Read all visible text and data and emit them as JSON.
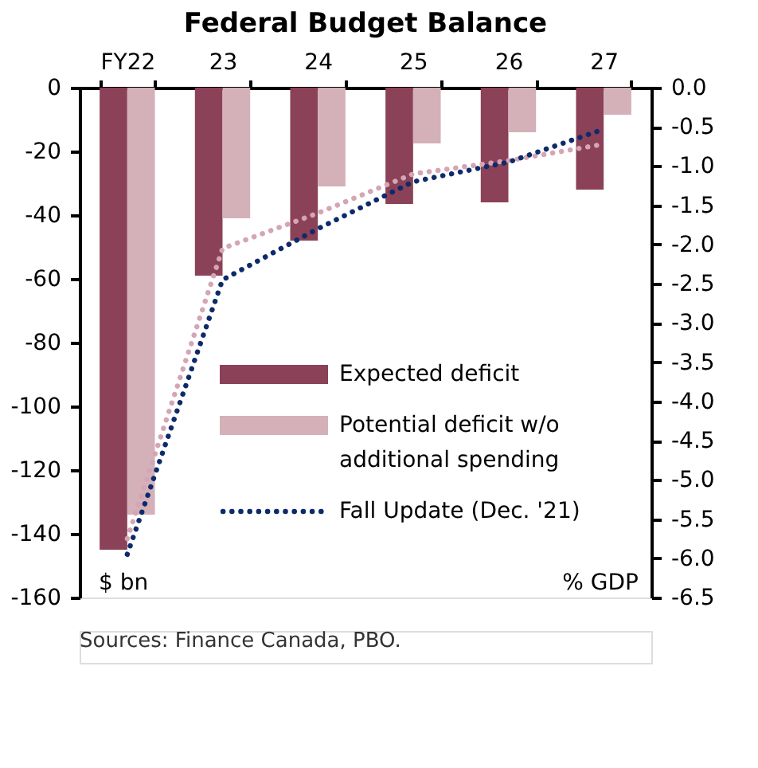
{
  "chart_data": {
    "type": "bar",
    "title": "Federal Budget Balance",
    "categories": [
      "FY22",
      "23",
      "24",
      "25",
      "26",
      "27"
    ],
    "ylabel": "$ bn",
    "y2label": "% GDP",
    "ylim": [
      -160,
      0
    ],
    "yticks": [
      -160,
      -140,
      -120,
      -100,
      -80,
      -60,
      -40,
      -20,
      0
    ],
    "y2lim": [
      -6.5,
      0
    ],
    "y2ticks": [
      {
        "value": -6.5,
        "label": "-6.5"
      },
      {
        "value": -6,
        "label": "-6.0"
      },
      {
        "value": -5.5,
        "label": "-5.5"
      },
      {
        "value": -5,
        "label": "-5.0"
      },
      {
        "value": -4.5,
        "label": "-4.5"
      },
      {
        "value": -4,
        "label": "-4.0"
      },
      {
        "value": -3.5,
        "label": "-3.5"
      },
      {
        "value": -3,
        "label": "-3.0"
      },
      {
        "value": -2.5,
        "label": "-2.5"
      },
      {
        "value": -2,
        "label": "-2.0"
      },
      {
        "value": -1.5,
        "label": "-1.5"
      },
      {
        "value": -1,
        "label": "-1.0"
      },
      {
        "value": -0.5,
        "label": "-0.5"
      },
      {
        "value": 0,
        "label": "0.0"
      }
    ],
    "series": [
      {
        "name": "Expected deficit",
        "color": "#8b4158",
        "values": [
          -145,
          -59,
          -48,
          -36.5,
          -36,
          -32
        ]
      },
      {
        "name": "Potential deficit w/o additional spending",
        "color": "#d4b0b9",
        "values": [
          -134,
          -41,
          -31,
          -17.5,
          -14,
          -8.5
        ]
      },
      {
        "type": "line",
        "axis": "y2",
        "color": "#d4a5b5",
        "line_style": "dotted",
        "values": [
          -5.75,
          -2.05,
          -1.6,
          -1.1,
          -0.93,
          -0.72
        ]
      },
      {
        "name": "Fall Update (Dec. '21)",
        "type": "line",
        "axis": "y2",
        "color": "#0d2b6b",
        "line_style": "dotted",
        "values": [
          -5.95,
          -2.45,
          -1.8,
          -1.2,
          -0.95,
          -0.53
        ]
      }
    ],
    "legend": "bottom right",
    "grid": false,
    "annotations": [
      "Sources: Finance Canada, PBO."
    ]
  }
}
